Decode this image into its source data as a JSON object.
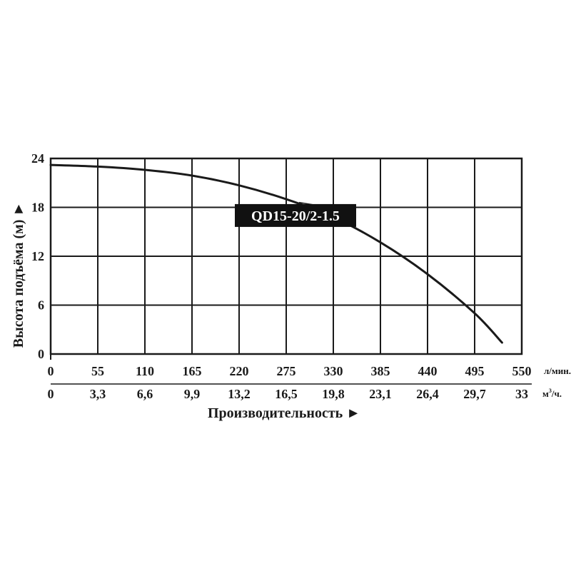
{
  "chart_data": {
    "type": "line",
    "title": "",
    "xlabel": "Производительность ►",
    "ylabel": "Высота подъёма (м) ►",
    "x_unit_primary": "л/мин.",
    "x_unit_secondary_base": "м",
    "x_unit_secondary_sup": "3",
    "x_unit_secondary_tail": "/ч.",
    "xlim": [
      0,
      550
    ],
    "ylim": [
      0,
      24
    ],
    "x_ticks_primary": [
      0,
      55,
      110,
      165,
      220,
      275,
      330,
      385,
      440,
      495,
      550
    ],
    "x_ticks_primary_labels": [
      "0",
      "55",
      "110",
      "165",
      "220",
      "275",
      "330",
      "385",
      "440",
      "495",
      "550"
    ],
    "x_ticks_secondary_labels": [
      "0",
      "3,3",
      "6,6",
      "9,9",
      "13,2",
      "16,5",
      "19,8",
      "23,1",
      "26,4",
      "29,7",
      "33"
    ],
    "y_ticks": [
      0,
      6,
      12,
      18,
      24
    ],
    "y_ticks_labels": [
      "0",
      "6",
      "12",
      "18",
      "24"
    ],
    "grid": true,
    "series": [
      {
        "name": "QD15-20/2-1.5",
        "x": [
          0,
          55,
          110,
          165,
          220,
          275,
          330,
          385,
          440,
          495,
          527
        ],
        "y": [
          23.2,
          23.0,
          22.6,
          21.9,
          20.7,
          19.0,
          16.8,
          13.7,
          9.8,
          5.0,
          1.4
        ]
      }
    ],
    "annotation": {
      "text": "QD15-20/2-1.5",
      "x": 215,
      "y": 17.0,
      "leader_to_x": 290,
      "leader_to_y": 18.6
    }
  }
}
